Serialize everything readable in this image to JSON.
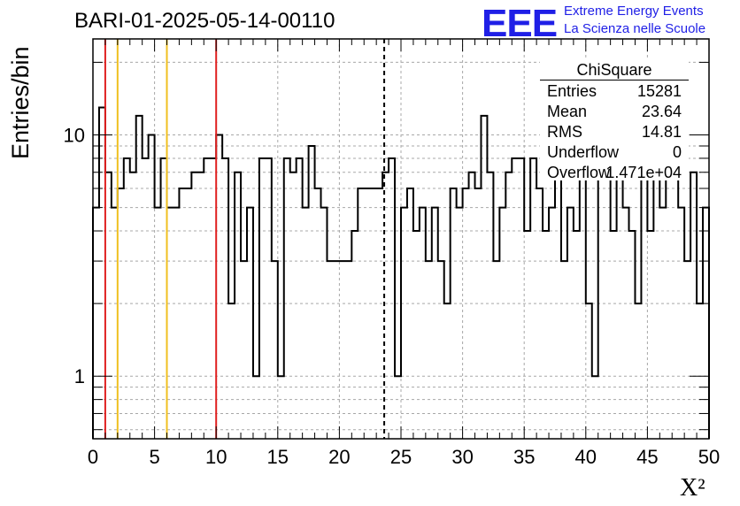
{
  "title": "BARI-01-2025-05-14-00110",
  "logo": {
    "mark": "EEE",
    "line1": "Extreme Energy Events",
    "line2": "La Scienza nelle Scuole",
    "color": "#1f1fe6"
  },
  "stats": {
    "name": "ChiSquare",
    "rows": [
      {
        "key": "Entries",
        "value": "15281"
      },
      {
        "key": "Mean",
        "value": "23.64"
      },
      {
        "key": "RMS",
        "value": "14.81"
      },
      {
        "key": "Underflow",
        "value": "0"
      },
      {
        "key": "Overflow",
        "value": "1.471e+04"
      }
    ]
  },
  "chart_data": {
    "type": "histogram",
    "title": "BARI-01-2025-05-14-00110",
    "xlabel": "X²",
    "ylabel": "Entries/bin",
    "xlim": [
      0,
      50
    ],
    "ylim": [
      0.55,
      25
    ],
    "yscale": "log",
    "grid": true,
    "x_ticks": [
      0,
      5,
      10,
      15,
      20,
      25,
      30,
      35,
      40,
      45,
      50
    ],
    "y_ticks": [
      1,
      10
    ],
    "bin_width": 0.5,
    "bin_counts": [
      5,
      13,
      7,
      5,
      6,
      8,
      7,
      12,
      8,
      10,
      5,
      8,
      5,
      5,
      6,
      6,
      7,
      7,
      8,
      8,
      10,
      8,
      2,
      7,
      3,
      5,
      1,
      8,
      8,
      3,
      1,
      8,
      7,
      8,
      5,
      9,
      6,
      5,
      3,
      3,
      3,
      3,
      4,
      6,
      6,
      6,
      6,
      7,
      8,
      1,
      5,
      6,
      4,
      5,
      3,
      5,
      3,
      2,
      6,
      5,
      6,
      7,
      6,
      12,
      7,
      3,
      5,
      7,
      8,
      8,
      4,
      8,
      6,
      4,
      5,
      8,
      3,
      5,
      4,
      8,
      2,
      1,
      7,
      7,
      4,
      7,
      5,
      4,
      2,
      7,
      4,
      7,
      5,
      8,
      7,
      5,
      3,
      7,
      2,
      5
    ],
    "vertical_lines": [
      {
        "x": 1,
        "color": "#e02020",
        "style": "solid"
      },
      {
        "x": 2,
        "color": "#f0c020",
        "style": "solid"
      },
      {
        "x": 6,
        "color": "#f0c020",
        "style": "solid"
      },
      {
        "x": 10,
        "color": "#e02020",
        "style": "solid"
      },
      {
        "x": 23.64,
        "color": "#000000",
        "style": "dashed"
      }
    ],
    "legend": "top-right"
  }
}
